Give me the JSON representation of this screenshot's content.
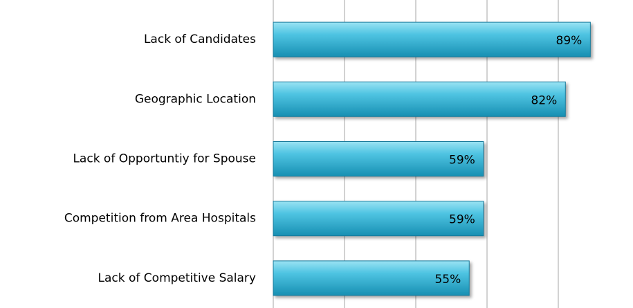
{
  "chart_data": {
    "type": "bar",
    "orientation": "horizontal",
    "categories": [
      "Lack of Candidates",
      "Geographic Location",
      "Lack of Opportuntiy for Spouse",
      "Competition from Area Hospitals",
      "Lack of Competitive Salary"
    ],
    "values": [
      89,
      82,
      59,
      59,
      55
    ],
    "value_labels": [
      "89%",
      "82%",
      "59%",
      "59%",
      "55%"
    ],
    "color": "#2fb3d6",
    "xlim": [
      0,
      100
    ],
    "xticks": [
      0,
      20,
      40,
      60,
      80
    ],
    "grid": true
  }
}
